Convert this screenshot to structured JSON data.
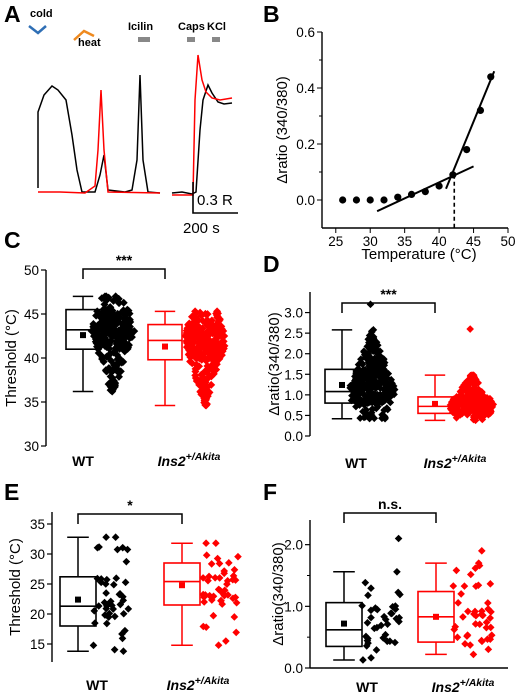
{
  "panel_labels": [
    "A",
    "B",
    "C",
    "D",
    "E",
    "F"
  ],
  "colors": {
    "wt": "#000000",
    "akita": "#ff0000",
    "cold": "#2f6fb5",
    "heat": "#ef8a1f",
    "bar": "#888888"
  },
  "panel_a": {
    "stimuli": [
      "cold",
      "heat",
      "Icilin",
      "Caps",
      "KCl"
    ],
    "scale_vertical": "0.3 R",
    "scale_horizontal": "200 s"
  },
  "chart_data": [
    {
      "panel": "B",
      "type": "scatter",
      "xlabel": "Temperature (°C)",
      "ylabel": "Δratio (340/380)",
      "xlim": [
        23,
        50
      ],
      "ylim": [
        -0.1,
        0.6
      ],
      "xticks": [
        "25",
        "30",
        "35",
        "40",
        "45",
        "50"
      ],
      "yticks": [
        "0.0",
        "0.2",
        "0.4",
        "0.6"
      ],
      "x": [
        26,
        28,
        30,
        32,
        34,
        36,
        38,
        40,
        42,
        44,
        46,
        47.5
      ],
      "y": [
        0.0,
        0.0,
        0.0,
        0.0,
        0.01,
        0.02,
        0.03,
        0.05,
        0.09,
        0.18,
        0.32,
        0.44
      ],
      "fit_lines": [
        {
          "x": [
            31,
            45
          ],
          "y": [
            -0.04,
            0.12
          ]
        },
        {
          "x": [
            41,
            48
          ],
          "y": [
            0.04,
            0.46
          ]
        }
      ],
      "threshold": 42.2
    },
    {
      "panel": "C",
      "type": "box",
      "ylabel": "Threshold (°C)",
      "ylim": [
        30,
        50
      ],
      "yticks": [
        "30",
        "35",
        "40",
        "45",
        "50"
      ],
      "categories": [
        "WT",
        "Ins2+/Akita"
      ],
      "boxes": [
        {
          "min": 36.2,
          "q1": 41.0,
          "median": 43.2,
          "q3": 45.5,
          "max": 47.0,
          "mean": 42.6
        },
        {
          "min": 34.6,
          "q1": 39.8,
          "median": 42.0,
          "q3": 43.8,
          "max": 45.3,
          "mean": 41.3
        }
      ],
      "significance": "***"
    },
    {
      "panel": "D",
      "type": "box",
      "ylabel": "Δratio(340/380)",
      "ylim": [
        0.0,
        3.5
      ],
      "yticks": [
        "0.0",
        "0.5",
        "1.0",
        "1.5",
        "2.0",
        "2.5",
        "3.0"
      ],
      "categories": [
        "WT",
        "Ins2+/Akita"
      ],
      "boxes": [
        {
          "min": 0.42,
          "q1": 0.8,
          "median": 1.08,
          "q3": 1.62,
          "max": 2.58,
          "mean": 1.24
        },
        {
          "min": 0.38,
          "q1": 0.55,
          "median": 0.72,
          "q3": 0.95,
          "max": 1.48,
          "mean": 0.78
        }
      ],
      "significance": "***"
    },
    {
      "panel": "E",
      "type": "box",
      "ylabel": "Threshold (°C)",
      "ylim": [
        12,
        37
      ],
      "yticks": [
        "15",
        "20",
        "25",
        "30",
        "35"
      ],
      "categories": [
        "WT",
        "Ins2+/Akita"
      ],
      "boxes": [
        {
          "min": 13.8,
          "q1": 18.0,
          "median": 21.3,
          "q3": 26.2,
          "max": 32.8,
          "mean": 22.4
        },
        {
          "min": 14.8,
          "q1": 21.5,
          "median": 25.4,
          "q3": 28.5,
          "max": 31.8,
          "mean": 24.8
        }
      ],
      "significance": "*"
    },
    {
      "panel": "F",
      "type": "box",
      "ylabel": "Δratio(340/380)",
      "ylim": [
        0.0,
        2.4
      ],
      "yticks": [
        "0.0",
        "1.0",
        "2.0"
      ],
      "categories": [
        "WT",
        "Ins2+/Akita"
      ],
      "boxes": [
        {
          "min": 0.13,
          "q1": 0.35,
          "median": 0.62,
          "q3": 1.06,
          "max": 1.56,
          "mean": 0.72
        },
        {
          "min": 0.22,
          "q1": 0.42,
          "median": 0.83,
          "q3": 1.24,
          "max": 1.7,
          "mean": 0.83
        }
      ],
      "significance": "n.s."
    }
  ]
}
